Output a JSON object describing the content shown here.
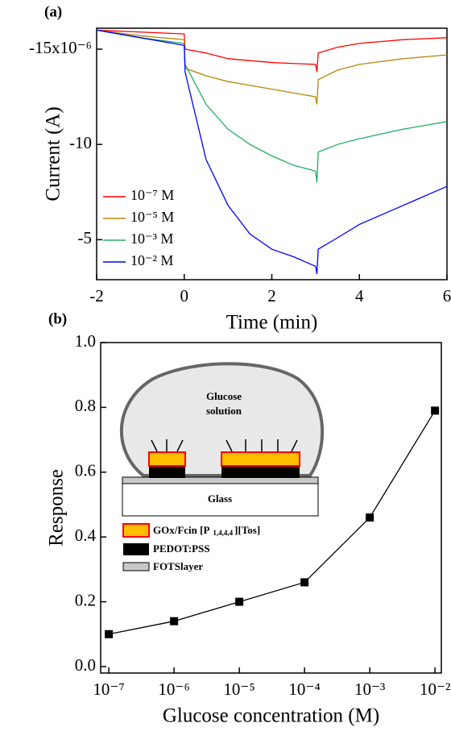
{
  "chart_data": [
    {
      "type": "line",
      "panel_label": "(a)",
      "x_label": "Time (min)",
      "y_label": "Current (A)",
      "x": [
        -2,
        -1,
        0,
        0.02,
        0.5,
        1,
        1.5,
        2,
        2.5,
        3,
        3.03,
        3.06,
        3.5,
        4,
        5,
        6
      ],
      "series": [
        {
          "name": "10⁻⁷ M",
          "color": "#ff0000",
          "values": [
            -16.0,
            -15.9,
            -15.8,
            -15.0,
            -14.8,
            -14.5,
            -14.4,
            -14.3,
            -14.25,
            -14.2,
            -13.8,
            -14.8,
            -15.1,
            -15.3,
            -15.5,
            -15.6
          ]
        },
        {
          "name": "10⁻⁵ M",
          "color": "#b8860b",
          "values": [
            -16.0,
            -15.7,
            -15.5,
            -14.0,
            -13.6,
            -13.3,
            -13.1,
            -12.9,
            -12.7,
            -12.5,
            -12.1,
            -13.4,
            -13.9,
            -14.2,
            -14.5,
            -14.7
          ]
        },
        {
          "name": "10⁻³ M",
          "color": "#20b060",
          "values": [
            -16.0,
            -15.6,
            -15.3,
            -14.2,
            -12.1,
            -10.8,
            -10.0,
            -9.4,
            -8.9,
            -8.6,
            -8.0,
            -9.6,
            -10.0,
            -10.3,
            -10.8,
            -11.2
          ]
        },
        {
          "name": "10⁻² M",
          "color": "#0000ff",
          "values": [
            -16.0,
            -15.6,
            -15.2,
            -13.8,
            -9.2,
            -6.8,
            -5.3,
            -4.5,
            -4.1,
            -3.6,
            -3.2,
            -4.5,
            -5.1,
            -5.8,
            -6.8,
            -7.8
          ]
        }
      ],
      "xlim": [
        -2,
        6
      ],
      "xticks": [
        -2,
        0,
        2,
        4,
        6
      ],
      "ylim": [
        -2.9,
        -16.1
      ],
      "yticks": [
        -5,
        -10,
        {
          "value": -15,
          "label": "-15x10⁻⁶"
        }
      ],
      "legend": "lower left"
    },
    {
      "type": "line",
      "panel_label": "(b)",
      "x_label": "Glucose concentration (M)",
      "y_label": "Response",
      "x_scale": "log",
      "marker": "square",
      "x": [
        1e-07,
        1e-06,
        1e-05,
        0.0001,
        0.001,
        0.01
      ],
      "series": [
        {
          "color": "#000000",
          "values": [
            0.1,
            0.14,
            0.2,
            0.26,
            0.46,
            0.79
          ]
        }
      ],
      "xlim": [
        7.5e-08,
        0.0125
      ],
      "xticks": [
        {
          "value": 1e-07,
          "label": "10⁻⁷"
        },
        {
          "value": 1e-06,
          "label": "10⁻⁶"
        },
        {
          "value": 1e-05,
          "label": "10⁻⁵"
        },
        {
          "value": 0.0001,
          "label": "10⁻⁴"
        },
        {
          "value": 0.001,
          "label": "10⁻³"
        },
        {
          "value": 0.01,
          "label": "10⁻²"
        }
      ],
      "ylim": [
        -0.02,
        1.0
      ],
      "yticks": [
        {
          "value": 0,
          "label": "0.0"
        },
        0.2,
        0.4,
        0.6,
        0.8,
        {
          "value": 1,
          "label": "1.0"
        }
      ]
    }
  ],
  "inset": {
    "solution": [
      "Glucose",
      "solution"
    ],
    "substrate": "Glass",
    "legend": [
      [
        "GOx/Fcin [P",
        "1,4,4,4",
        "][Tos]"
      ],
      [
        "PEDOT:PSS"
      ],
      [
        "FOTSlayer"
      ]
    ]
  }
}
